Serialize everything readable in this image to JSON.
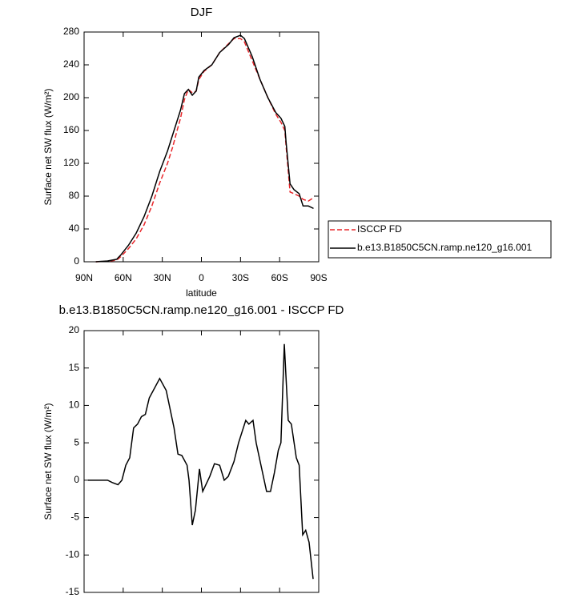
{
  "chart_data": [
    {
      "type": "line",
      "title": "DJF",
      "xlabel": "latitude",
      "ylabel": "Surface net SW flux (W/m²)",
      "xlim": [
        90,
        -90
      ],
      "xticks": [
        {
          "value": 90,
          "label": "90N"
        },
        {
          "value": 60,
          "label": "60N"
        },
        {
          "value": 30,
          "label": "30N"
        },
        0,
        {
          "value": -30,
          "label": "30S"
        },
        {
          "value": -60,
          "label": "60S"
        },
        {
          "value": -90,
          "label": "90S"
        }
      ],
      "ylim": [
        0,
        280
      ],
      "yticks": [
        0,
        40,
        80,
        120,
        160,
        200,
        240,
        280
      ],
      "x": [
        81,
        72,
        65,
        62,
        56,
        50,
        44,
        38,
        32,
        26,
        22,
        19,
        16,
        13,
        10,
        7,
        4,
        2,
        -2,
        -8,
        -14,
        -21,
        -25,
        -30,
        -33,
        -39,
        -45,
        -51,
        -57,
        -61,
        -64,
        -65,
        -68,
        -71,
        -75,
        -78,
        -82,
        -86
      ],
      "series": [
        {
          "name": "ISCCP FD",
          "color": "#e8262a",
          "dash": true,
          "values": [
            0,
            0.5,
            2,
            6,
            16,
            28,
            45,
            68,
            96,
            120,
            140,
            158,
            175,
            198,
            210,
            206,
            208,
            222,
            232,
            240,
            255,
            266,
            272,
            272,
            268,
            245,
            222,
            200,
            180,
            170,
            160,
            140,
            85,
            83,
            80,
            76,
            74,
            78
          ]
        },
        {
          "name": "b.e13.B1850C5CN.ramp.ne120_g16.001",
          "color": "#000000",
          "dash": false,
          "values": [
            0,
            1,
            3,
            8,
            20,
            35,
            55,
            80,
            110,
            135,
            155,
            170,
            185,
            205,
            210,
            203,
            208,
            225,
            233,
            240,
            255,
            265,
            273,
            276,
            272,
            250,
            222,
            200,
            182,
            175,
            165,
            145,
            95,
            88,
            83,
            68,
            68,
            65
          ]
        }
      ]
    },
    {
      "type": "line",
      "title": "b.e13.B1850C5CN.ramp.ne120_g16.001 - ISCCP FD",
      "xlabel": "latitude",
      "ylabel": "Surface net SW flux (W/m²)",
      "xlim": [
        90,
        -90
      ],
      "xticks": [
        {
          "value": 90,
          "label": "90N"
        },
        {
          "value": 60,
          "label": "60N"
        },
        {
          "value": 30,
          "label": "30N"
        },
        0,
        {
          "value": -30,
          "label": "30S"
        },
        {
          "value": -60,
          "label": "60S"
        },
        {
          "value": -90,
          "label": "90S"
        }
      ],
      "ylim": [
        -15,
        20
      ],
      "yticks": [
        -15,
        -10,
        -5,
        0,
        5,
        10,
        15,
        20
      ],
      "x": [
        87,
        72,
        68.5,
        64,
        61,
        58,
        55,
        52,
        49,
        46,
        43,
        40,
        32,
        27,
        21,
        18,
        15,
        11,
        9.5,
        7,
        4.6,
        1.5,
        -1,
        -6.4,
        -10,
        -14,
        -17.5,
        -20.6,
        -25,
        -28.5,
        -34,
        -36.4,
        -39.6,
        -42,
        -50,
        -53,
        -56,
        -59,
        -61,
        -63.6,
        -66.6,
        -69,
        -72.8,
        -75,
        -77.7,
        -80,
        -82.6,
        -85.7
      ],
      "series": [
        {
          "color": "#000000",
          "dash": false,
          "values": [
            0,
            0,
            -0.3,
            -0.6,
            0,
            2,
            3,
            7,
            7.5,
            8.5,
            8.8,
            11,
            13.6,
            12,
            7,
            3.5,
            3.3,
            2,
            0,
            -6,
            -4,
            1.5,
            -1.5,
            0.5,
            2.2,
            2,
            0,
            0.5,
            2.5,
            5,
            8,
            7.5,
            8,
            5,
            -1.5,
            -1.5,
            1,
            4,
            5,
            18.2,
            8,
            7.5,
            3,
            2,
            -7.3,
            -6.7,
            -8.3,
            -13.2
          ]
        }
      ]
    }
  ]
}
